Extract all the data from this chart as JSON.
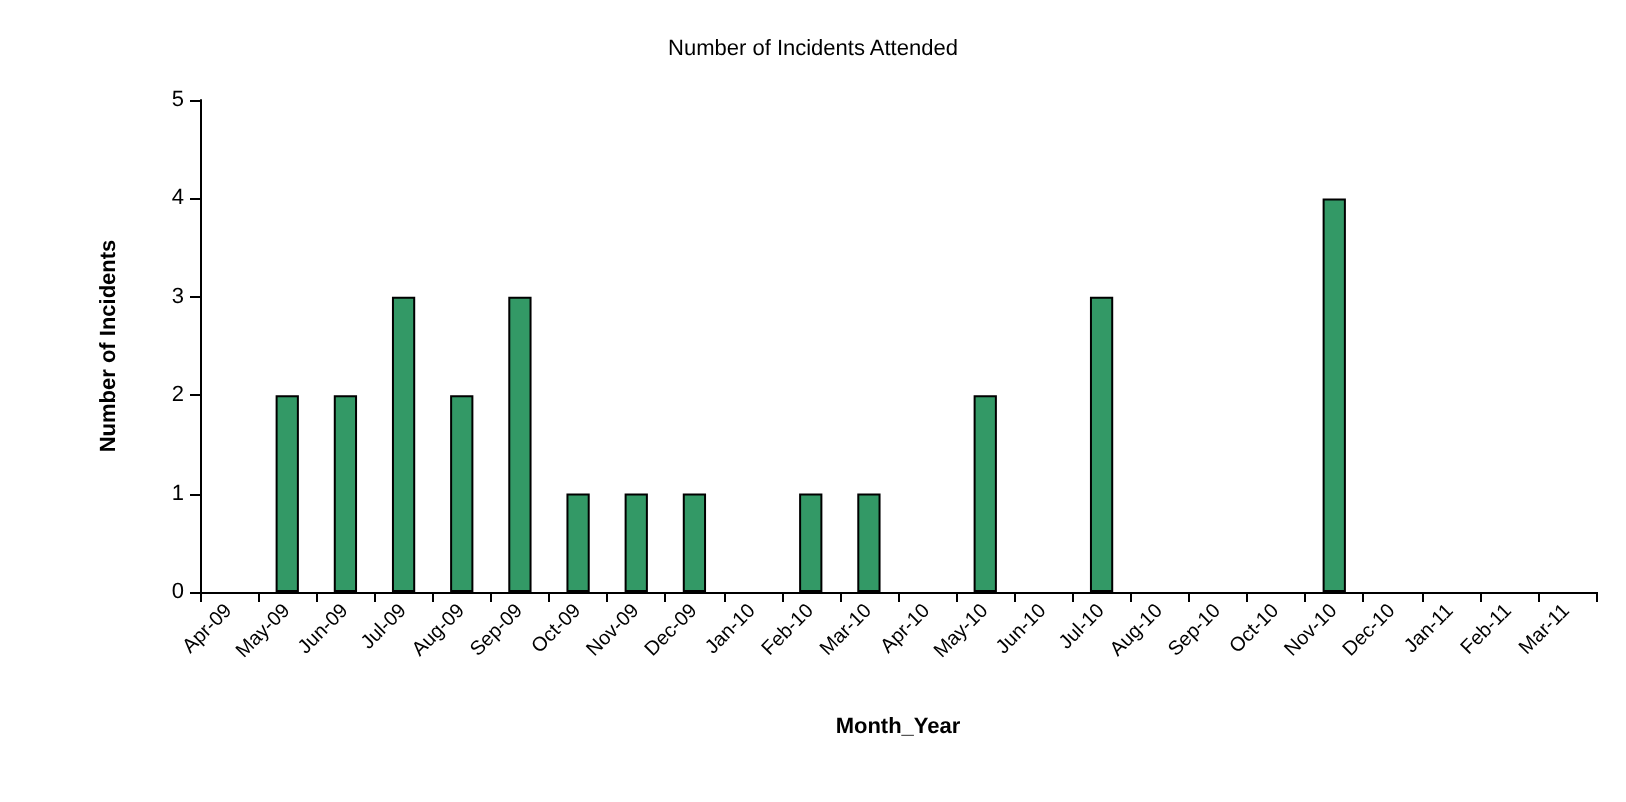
{
  "chart_data": {
    "type": "bar",
    "title": "Number of Incidents Attended",
    "xlabel": "Month_Year",
    "ylabel": "Number of Incidents",
    "categories": [
      "Apr-09",
      "May-09",
      "Jun-09",
      "Jul-09",
      "Aug-09",
      "Sep-09",
      "Oct-09",
      "Nov-09",
      "Dec-09",
      "Jan-10",
      "Feb-10",
      "Mar-10",
      "Apr-10",
      "May-10",
      "Jun-10",
      "Jul-10",
      "Aug-10",
      "Sep-10",
      "Oct-10",
      "Nov-10",
      "Dec-10",
      "Jan-11",
      "Feb-11",
      "Mar-11"
    ],
    "values": [
      0,
      2,
      2,
      3,
      2,
      3,
      1,
      1,
      1,
      0,
      1,
      1,
      0,
      2,
      0,
      3,
      0,
      0,
      0,
      4,
      0,
      0,
      0,
      0
    ],
    "color": "#339966",
    "ylim": [
      0,
      5
    ],
    "yticks": [
      0,
      1,
      2,
      3,
      4,
      5
    ],
    "grid": false
  }
}
